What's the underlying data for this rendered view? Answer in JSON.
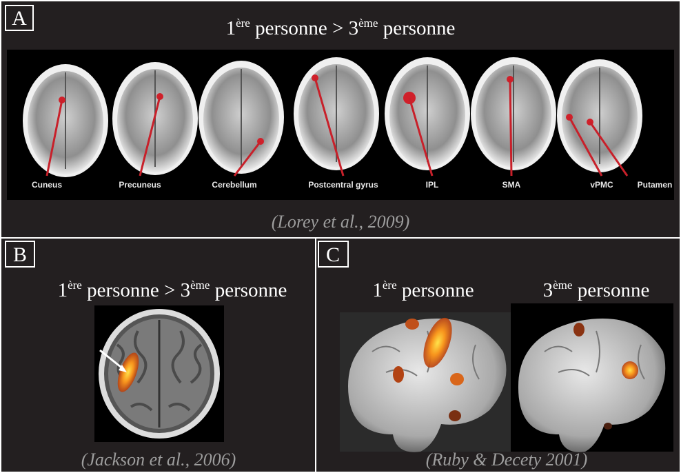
{
  "panels": [
    {
      "letter": "A",
      "title": [
        "1",
        "ère",
        " personne > 3",
        "ème",
        " personne"
      ],
      "regions": [
        "Cuneus",
        "Precuneus",
        "Cerebellum",
        "Postcentral gyrus",
        "IPL",
        "SMA",
        "vPMC",
        "Putamen"
      ],
      "citation": "(Lorey et al., 2009)"
    },
    {
      "letter": "B",
      "title": [
        "1",
        "ère",
        " personne > 3",
        "ème",
        " personne"
      ],
      "citation": "(Jackson et al., 2006)"
    },
    {
      "letter": "C",
      "captions": [
        [
          "1",
          "ère",
          " personne"
        ],
        [
          "3",
          "ème",
          " personne"
        ]
      ],
      "citation": "(Ruby & Decety 2001)"
    }
  ]
}
